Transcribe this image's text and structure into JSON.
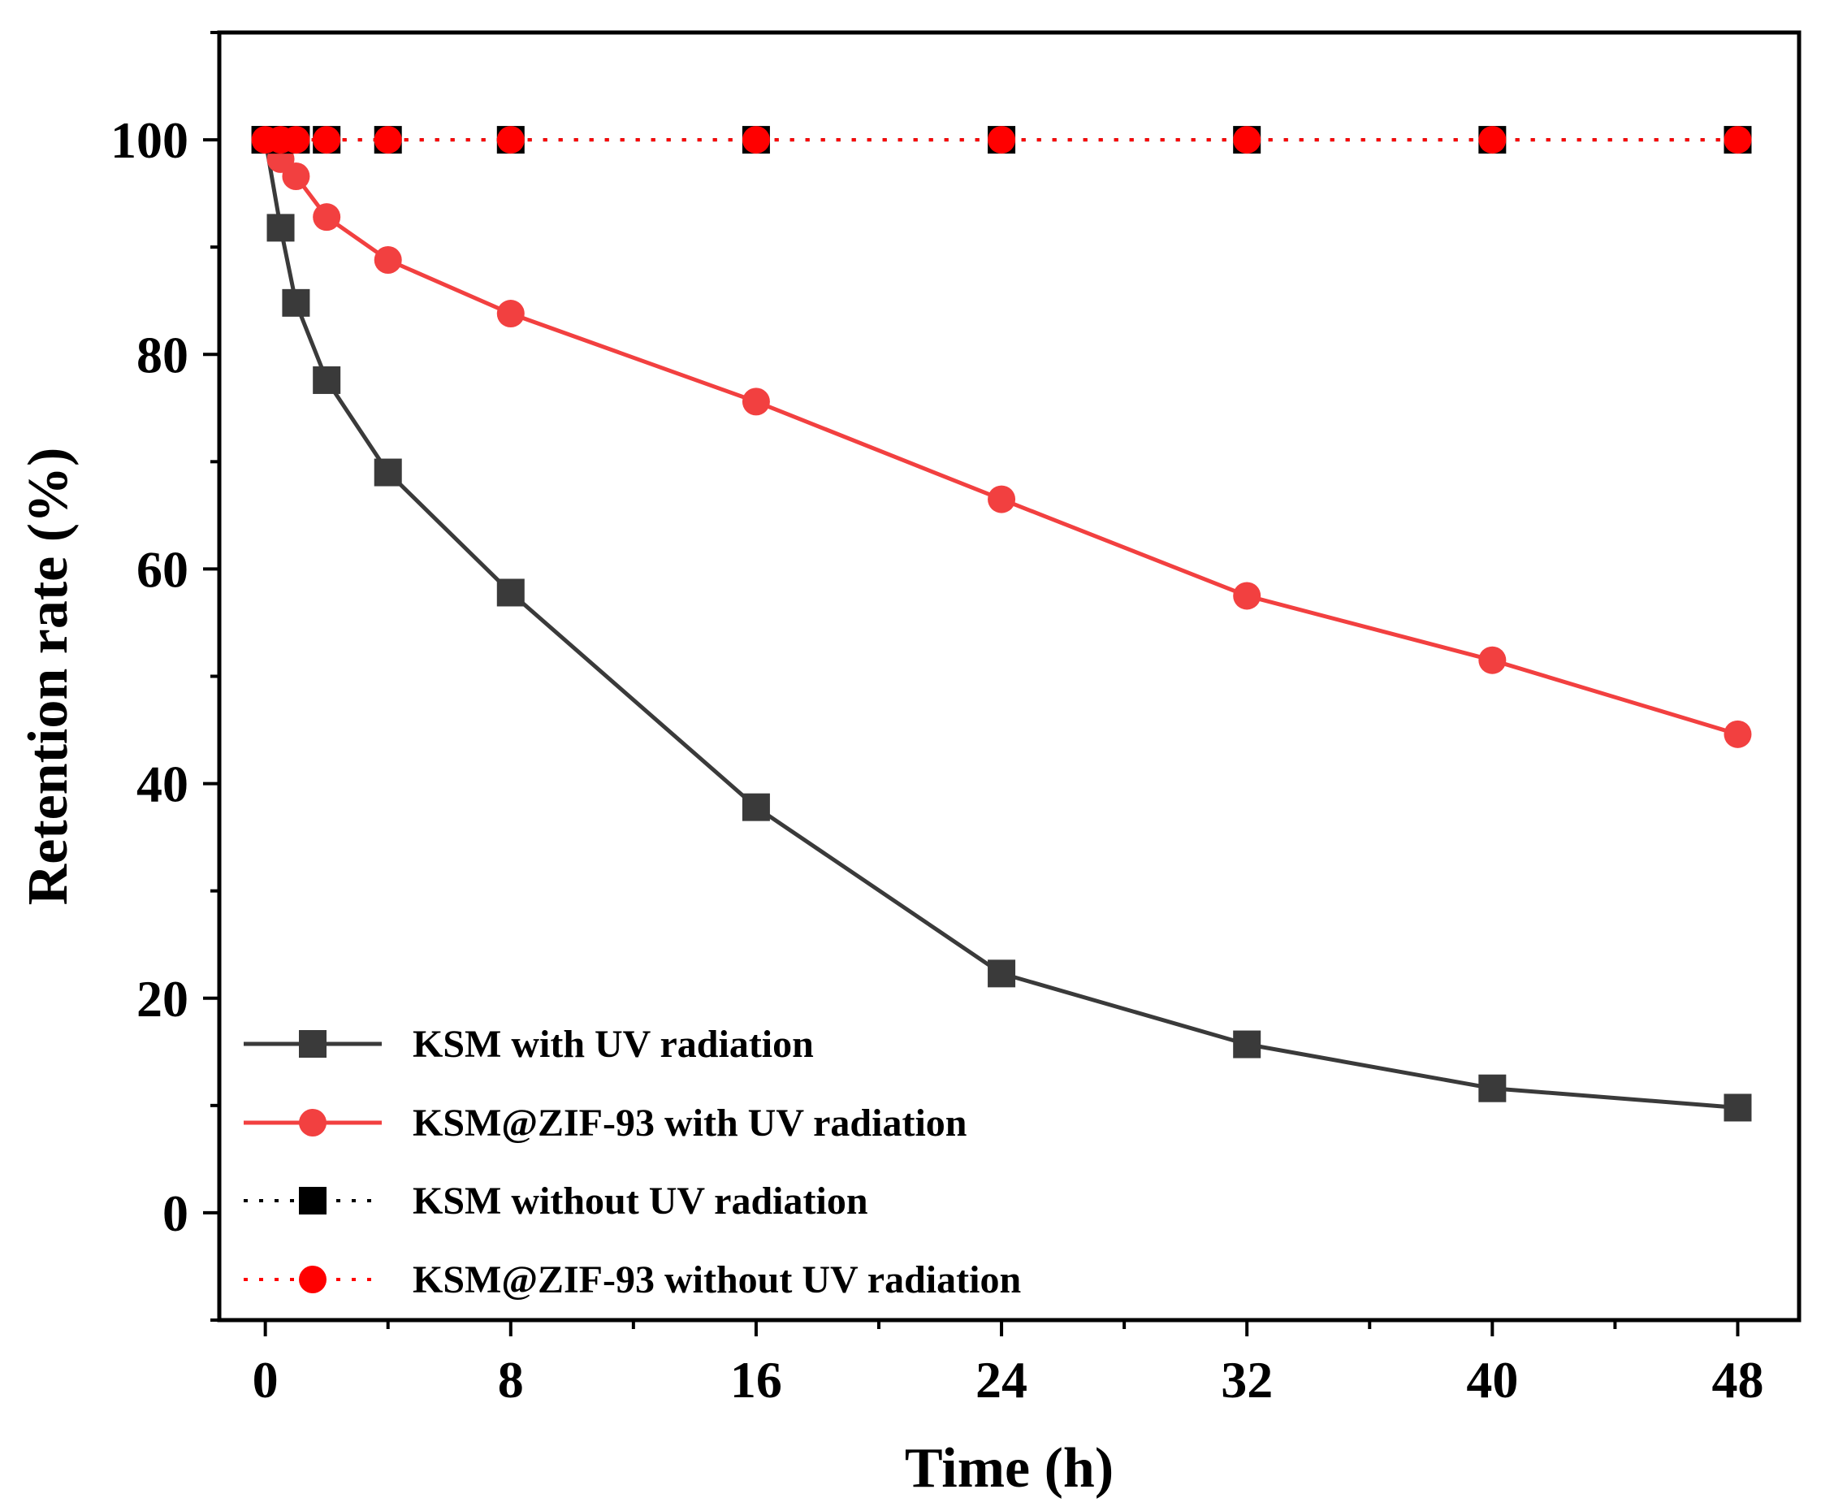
{
  "chart_data": {
    "type": "line",
    "xlabel": "Time (h)",
    "ylabel": "Retention rate (%)",
    "xlim": [
      -1.5,
      50
    ],
    "ylim": [
      -10,
      110
    ],
    "xticks": [
      0,
      8,
      16,
      24,
      32,
      40,
      48
    ],
    "yticks": [
      0,
      20,
      40,
      60,
      80,
      100
    ],
    "grid": false,
    "legend_position": "bottom-left",
    "series": [
      {
        "name": "KSM with UV radiation",
        "color": "#3a3a3a",
        "line_style": "solid",
        "marker": "square",
        "x": [
          0,
          0.5,
          1,
          2,
          4,
          8,
          16,
          24,
          32,
          40,
          48
        ],
        "y": [
          100,
          91.8,
          84.8,
          77.6,
          69,
          57.8,
          37.8,
          22.3,
          15.7,
          11.6,
          9.8
        ]
      },
      {
        "name": "KSM@ZIF-93 with UV radiation",
        "color": "#f24040",
        "line_style": "solid",
        "marker": "circle",
        "x": [
          0,
          0.5,
          1,
          2,
          4,
          8,
          16,
          24,
          32,
          40,
          48
        ],
        "y": [
          100,
          98.2,
          96.6,
          92.8,
          88.8,
          83.8,
          75.6,
          66.5,
          57.5,
          51.5,
          44.6
        ]
      },
      {
        "name": "KSM without UV radiation",
        "color": "#000000",
        "line_style": "dotted",
        "marker": "square",
        "x": [
          0,
          0.5,
          1,
          2,
          4,
          8,
          16,
          24,
          32,
          40,
          48
        ],
        "y": [
          100,
          100,
          100,
          100,
          100,
          100,
          100,
          100,
          100,
          100,
          100
        ]
      },
      {
        "name": "KSM@ZIF-93 without UV radiation",
        "color": "#ff0000",
        "line_style": "dotted",
        "marker": "circle",
        "x": [
          0,
          0.5,
          1,
          2,
          4,
          8,
          16,
          24,
          32,
          40,
          48
        ],
        "y": [
          100,
          100,
          100,
          100,
          100,
          100,
          100,
          100,
          100,
          100,
          100
        ]
      }
    ]
  }
}
